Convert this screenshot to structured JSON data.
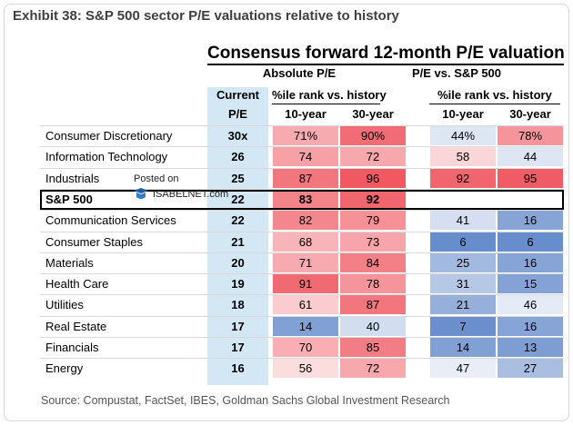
{
  "title": "Exhibit 38: S&P 500 sector P/E valuations relative to history",
  "chart_data": {
    "type": "table",
    "title": "Consensus forward 12-month P/E valuation",
    "group_absolute": "Absolute P/E",
    "group_relative": "P/E vs. S&P 500",
    "sub_absolute": "%ile rank vs. history",
    "sub_relative": "%ile rank vs. history",
    "current_header_1": "Current",
    "current_header_2": "P/E",
    "col_10y_abs": "10-year",
    "col_30y_abs": "30-year",
    "col_10y_rel": "10-year",
    "col_30y_rel": "30-year",
    "rows": [
      {
        "sector": "Consumer Discretionary",
        "current": "30x",
        "abs10": "71%",
        "abs30": "90%",
        "rel10": "44%",
        "rel30": "78%"
      },
      {
        "sector": "Information Technology",
        "current": "26",
        "abs10": "74",
        "abs30": "72",
        "rel10": "58",
        "rel30": "44"
      },
      {
        "sector": "Industrials",
        "current": "25",
        "abs10": "87",
        "abs30": "96",
        "rel10": "92",
        "rel30": "95"
      },
      {
        "sector": "S&P 500",
        "current": "22",
        "abs10": "83",
        "abs30": "92",
        "rel10": "",
        "rel30": "",
        "highlight": true
      },
      {
        "sector": "Communication Services",
        "current": "22",
        "abs10": "82",
        "abs30": "79",
        "rel10": "41",
        "rel30": "16"
      },
      {
        "sector": "Consumer Staples",
        "current": "21",
        "abs10": "68",
        "abs30": "73",
        "rel10": "6",
        "rel30": "6"
      },
      {
        "sector": "Materials",
        "current": "20",
        "abs10": "71",
        "abs30": "84",
        "rel10": "25",
        "rel30": "16"
      },
      {
        "sector": "Health Care",
        "current": "19",
        "abs10": "91",
        "abs30": "78",
        "rel10": "31",
        "rel30": "15"
      },
      {
        "sector": "Utilities",
        "current": "18",
        "abs10": "61",
        "abs30": "87",
        "rel10": "21",
        "rel30": "46"
      },
      {
        "sector": "Real Estate",
        "current": "17",
        "abs10": "14",
        "abs30": "40",
        "rel10": "7",
        "rel30": "16"
      },
      {
        "sector": "Financials",
        "current": "17",
        "abs10": "70",
        "abs30": "85",
        "rel10": "14",
        "rel30": "13"
      },
      {
        "sector": "Energy",
        "current": "16",
        "abs10": "56",
        "abs30": "72",
        "rel10": "47",
        "rel30": "27"
      }
    ]
  },
  "watermark": {
    "line1": "Posted on",
    "line2": "ISABELNET.com"
  },
  "source": "Source: Compustat, FactSet, IBES, Goldman Sachs Global Investment Research"
}
